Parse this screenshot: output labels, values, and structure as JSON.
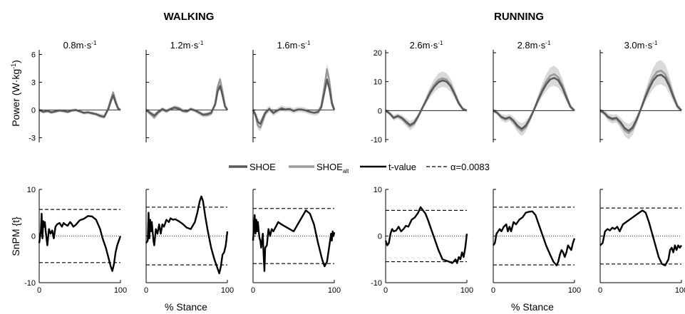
{
  "colors": {
    "shoe": "#5a5a5a",
    "shoe_alt": "#9a9a9a",
    "band": "#d9d9d9",
    "tvalue": "#000000",
    "threshold": "#000000",
    "axis": "#000000",
    "zero": "#000000"
  },
  "headers": {
    "walking": "WALKING",
    "running": "RUNNING"
  },
  "power_ylabel": "Power (W·kg",
  "power_ylabel_sup": "-1",
  "power_ylabel_end": ")",
  "spm_ylabel": "SnPM {t}",
  "xlabel": "% Stance",
  "legend": {
    "shoe": "SHOE",
    "shoe_alt_base": "SHOE",
    "shoe_alt_sub": "alt",
    "tvalue": "t-value",
    "alpha": "α=0.0083"
  },
  "chart_data": {
    "type": "line",
    "x_range": [
      0,
      100
    ],
    "x_ticks": [
      "0",
      "100"
    ],
    "power_panels": [
      {
        "title_base": "0.8m·s",
        "title_sup": "-1",
        "ylim": [
          -3.5,
          6.5
        ],
        "yticks": [
          6,
          3,
          0,
          -3
        ],
        "ytick_labels": [
          "6",
          "3",
          "0",
          "-3"
        ],
        "x": [
          0,
          5,
          10,
          15,
          20,
          25,
          30,
          35,
          40,
          45,
          50,
          55,
          60,
          65,
          70,
          75,
          80,
          85,
          88,
          91,
          94,
          97,
          100
        ],
        "shoe": [
          0,
          -0.2,
          -0.1,
          -0.25,
          -0.15,
          -0.05,
          -0.1,
          -0.2,
          -0.05,
          0,
          -0.15,
          -0.3,
          -0.25,
          -0.35,
          -0.45,
          -0.65,
          -0.75,
          0.1,
          0.9,
          1.6,
          0.8,
          0.15,
          0
        ],
        "shoe_alt": [
          0,
          -0.2,
          -0.1,
          -0.25,
          -0.15,
          -0.05,
          -0.1,
          -0.2,
          -0.05,
          0,
          -0.15,
          -0.3,
          -0.25,
          -0.35,
          -0.45,
          -0.6,
          -0.7,
          0.2,
          1.1,
          1.9,
          1.0,
          0.2,
          0
        ],
        "band": 0.45
      },
      {
        "title_base": "1.2m·s",
        "title_sup": "-1",
        "ylim": [
          -3.5,
          6.5
        ],
        "yticks": [
          6,
          3,
          0,
          -3
        ],
        "ytick_labels": [
          "",
          "",
          "",
          ""
        ],
        "x": [
          0,
          5,
          10,
          15,
          20,
          25,
          30,
          35,
          40,
          45,
          50,
          55,
          60,
          65,
          70,
          75,
          80,
          85,
          88,
          91,
          94,
          97,
          100
        ],
        "shoe": [
          0,
          -0.3,
          -0.6,
          -0.2,
          0.1,
          -0.1,
          0.1,
          0.25,
          0.15,
          -0.1,
          -0.15,
          0.1,
          -0.05,
          -0.25,
          -0.5,
          -0.45,
          -0.3,
          0.6,
          2.0,
          2.6,
          1.6,
          0.4,
          0
        ],
        "shoe_alt": [
          0,
          -0.4,
          -0.8,
          -0.3,
          0.05,
          -0.15,
          0.1,
          0.3,
          0.2,
          -0.05,
          -0.15,
          0.1,
          -0.05,
          -0.3,
          -0.55,
          -0.55,
          -0.4,
          0.7,
          2.5,
          3.3,
          2.0,
          0.5,
          0
        ],
        "band": 0.5
      },
      {
        "title_base": "1.6m·s",
        "title_sup": "-1",
        "ylim": [
          -3.5,
          6.5
        ],
        "yticks": [
          6,
          3,
          0,
          -3
        ],
        "ytick_labels": [
          "",
          "",
          "",
          ""
        ],
        "x": [
          0,
          3,
          6,
          9,
          12,
          15,
          20,
          25,
          30,
          35,
          40,
          45,
          50,
          55,
          60,
          65,
          70,
          75,
          80,
          84,
          88,
          91,
          94,
          97,
          100
        ],
        "shoe": [
          0,
          -0.5,
          -1.3,
          -1.5,
          -0.9,
          -0.3,
          0.1,
          -0.3,
          -0.05,
          0.15,
          0.05,
          0.1,
          -0.1,
          0.05,
          0.05,
          -0.05,
          -0.2,
          -0.3,
          -0.2,
          0.3,
          2.0,
          3.3,
          2.3,
          0.7,
          0
        ],
        "shoe_alt": [
          0,
          -0.6,
          -1.7,
          -1.9,
          -1.2,
          -0.4,
          0.15,
          -0.35,
          -0.05,
          0.2,
          0.05,
          0.1,
          -0.1,
          0.05,
          0.05,
          -0.05,
          -0.2,
          -0.3,
          -0.25,
          0.4,
          2.6,
          4.4,
          3.1,
          0.9,
          0
        ],
        "band": 0.7
      },
      {
        "title_base": "2.6m·s",
        "title_sup": "-1",
        "ylim": [
          -11,
          21
        ],
        "yticks": [
          20,
          10,
          0,
          -10
        ],
        "ytick_labels": [
          "20",
          "10",
          "0",
          "-10"
        ],
        "x": [
          0,
          5,
          10,
          15,
          20,
          25,
          30,
          35,
          40,
          45,
          50,
          55,
          60,
          65,
          70,
          75,
          80,
          85,
          90,
          95,
          100
        ],
        "shoe": [
          0,
          -1,
          -2.5,
          -1.8,
          -2.5,
          -3.8,
          -5.0,
          -4.2,
          -2.0,
          0.8,
          3.5,
          6.2,
          8.3,
          9.8,
          10.4,
          10.0,
          8.4,
          5.6,
          2.5,
          0.5,
          0
        ],
        "shoe_alt": [
          0,
          -1,
          -2.6,
          -2.0,
          -2.8,
          -4.2,
          -5.5,
          -4.6,
          -2.2,
          0.8,
          3.8,
          6.8,
          9.0,
          10.6,
          11.2,
          10.7,
          9.0,
          6.0,
          2.7,
          0.6,
          0
        ],
        "band": 1.3
      },
      {
        "title_base": "2.8m·s",
        "title_sup": "-1",
        "ylim": [
          -11,
          21
        ],
        "yticks": [
          20,
          10,
          0,
          -10
        ],
        "ytick_labels": [
          "",
          "",
          "",
          ""
        ],
        "x": [
          0,
          5,
          10,
          15,
          20,
          25,
          30,
          35,
          40,
          45,
          50,
          55,
          60,
          65,
          70,
          75,
          80,
          85,
          90,
          95,
          100
        ],
        "shoe": [
          0,
          -0.8,
          -2.2,
          -2.8,
          -2.3,
          -3.5,
          -5.3,
          -6.3,
          -5.2,
          -2.8,
          0.2,
          3.5,
          6.5,
          9.0,
          10.8,
          11.3,
          10.5,
          8.0,
          4.5,
          1.3,
          0
        ],
        "shoe_alt": [
          0,
          -0.8,
          -2.4,
          -3.1,
          -2.6,
          -3.9,
          -5.9,
          -7.0,
          -5.8,
          -3.1,
          0.2,
          3.9,
          7.2,
          10.0,
          12.0,
          12.6,
          11.5,
          8.8,
          5.0,
          1.4,
          0
        ],
        "band": 1.5
      },
      {
        "title_base": "3.0m·s",
        "title_sup": "-1",
        "ylim": [
          -11,
          21
        ],
        "yticks": [
          20,
          10,
          0,
          -10
        ],
        "ytick_labels": [
          "",
          "",
          "",
          ""
        ],
        "x": [
          0,
          5,
          10,
          15,
          20,
          25,
          30,
          35,
          40,
          45,
          50,
          55,
          60,
          65,
          70,
          75,
          80,
          85,
          90,
          95,
          100
        ],
        "shoe": [
          0,
          -0.8,
          -2.2,
          -2.8,
          -2.5,
          -4.0,
          -6.0,
          -7.0,
          -5.8,
          -3.0,
          0.5,
          4.2,
          7.5,
          10.3,
          12.0,
          12.4,
          11.3,
          8.5,
          4.8,
          1.5,
          0
        ],
        "shoe_alt": [
          0,
          -0.9,
          -2.5,
          -3.2,
          -2.9,
          -4.6,
          -6.8,
          -7.8,
          -6.5,
          -3.4,
          0.5,
          4.7,
          8.4,
          11.5,
          13.4,
          13.8,
          12.6,
          9.5,
          5.3,
          1.6,
          0
        ],
        "band": 1.7
      }
    ],
    "spm_panels": [
      {
        "ylim": [
          -10,
          10
        ],
        "yticks": [
          10,
          0,
          -10
        ],
        "ytick_labels": [
          "10",
          "0",
          "-10"
        ],
        "threshold": 5.7,
        "x": [
          0,
          2,
          3,
          4,
          5,
          6,
          7,
          8,
          9,
          10,
          12,
          14,
          16,
          18,
          20,
          22,
          25,
          28,
          30,
          32,
          35,
          38,
          40,
          42,
          45,
          48,
          50,
          55,
          60,
          65,
          70,
          75,
          78,
          82,
          85,
          88,
          90,
          92,
          94,
          96,
          98,
          100
        ],
        "t": [
          -1.5,
          1.0,
          4.8,
          -0.5,
          3.2,
          2.0,
          3.0,
          1.0,
          -0.5,
          -2.0,
          1.5,
          0.5,
          1.2,
          -0.5,
          2.0,
          2.5,
          2.8,
          2.0,
          2.8,
          2.5,
          2.2,
          3.0,
          2.6,
          2.0,
          2.4,
          3.0,
          3.4,
          3.7,
          4.3,
          4.2,
          3.5,
          1.5,
          -0.5,
          -2.5,
          -4.5,
          -6.5,
          -7.5,
          -6.0,
          -3.5,
          -2.0,
          -1.0,
          0.0
        ]
      },
      {
        "ylim": [
          -10,
          10
        ],
        "yticks": [
          10,
          0,
          -10
        ],
        "ytick_labels": [
          "",
          "",
          ""
        ],
        "threshold": 6.2,
        "x": [
          0,
          2,
          3,
          4,
          5,
          6,
          7,
          8,
          9,
          10,
          12,
          14,
          16,
          18,
          20,
          22,
          25,
          28,
          30,
          33,
          36,
          40,
          45,
          50,
          55,
          60,
          63,
          66,
          68,
          70,
          73,
          76,
          80,
          84,
          88,
          90,
          92,
          94,
          96,
          98,
          100
        ],
        "t": [
          -1.5,
          -1.0,
          5.0,
          -0.5,
          3.5,
          1.0,
          3.0,
          1.0,
          -1.0,
          -2.0,
          1.5,
          0.5,
          2.5,
          0.5,
          2.5,
          2.0,
          3.5,
          3.0,
          3.8,
          3.5,
          3.6,
          3.2,
          2.6,
          1.8,
          1.5,
          3.0,
          5.0,
          7.5,
          8.5,
          7.5,
          4.0,
          1.0,
          -2.5,
          -5.0,
          -7.0,
          -8.0,
          -6.5,
          -4.0,
          -3.5,
          -2.0,
          1.0
        ]
      },
      {
        "ylim": [
          -10,
          10
        ],
        "yticks": [
          10,
          0,
          -10
        ],
        "ytick_labels": [
          "",
          "",
          ""
        ],
        "threshold": 5.9,
        "x": [
          0,
          2,
          3,
          4,
          5,
          6,
          7,
          8,
          9,
          10,
          11,
          12,
          13,
          14,
          15,
          17,
          19,
          21,
          23,
          25,
          28,
          31,
          35,
          40,
          45,
          50,
          55,
          60,
          65,
          70,
          75,
          80,
          85,
          88,
          91,
          94,
          96,
          97,
          98,
          99,
          100
        ],
        "t": [
          -1.0,
          4.5,
          0.5,
          3.5,
          1.0,
          3.0,
          1.0,
          -0.5,
          -1.0,
          -2.5,
          -1.0,
          0.5,
          -4.0,
          -7.5,
          -2.5,
          -2.0,
          1.5,
          0.0,
          1.5,
          1.0,
          2.0,
          3.0,
          2.5,
          2.0,
          1.5,
          1.0,
          2.5,
          4.0,
          5.5,
          4.8,
          2.5,
          -1.5,
          -5.0,
          -6.5,
          -5.5,
          -2.0,
          0.5,
          -1.0,
          1.0,
          0.0,
          0.8
        ]
      },
      {
        "ylim": [
          -10,
          10
        ],
        "yticks": [
          10,
          0,
          -10
        ],
        "ytick_labels": [
          "10",
          "0",
          "-10"
        ],
        "threshold": 5.5,
        "x": [
          0,
          2,
          4,
          6,
          8,
          10,
          13,
          16,
          19,
          22,
          25,
          28,
          32,
          36,
          40,
          43,
          46,
          49,
          52,
          56,
          60,
          65,
          70,
          75,
          78,
          82,
          86,
          88,
          90,
          92,
          94,
          96,
          98,
          100
        ],
        "t": [
          -1.0,
          -2.0,
          -1.5,
          0.5,
          1.5,
          1.0,
          1.2,
          2.0,
          1.0,
          1.5,
          2.2,
          2.0,
          3.5,
          4.0,
          5.0,
          6.2,
          5.5,
          4.8,
          3.5,
          1.5,
          -0.5,
          -3.0,
          -5.0,
          -5.3,
          -5.5,
          -5.8,
          -5.0,
          -5.8,
          -4.5,
          -5.0,
          -3.5,
          -4.5,
          -2.5,
          0.5
        ]
      },
      {
        "ylim": [
          -10,
          10
        ],
        "yticks": [
          10,
          0,
          -10
        ],
        "ytick_labels": [
          "",
          "",
          ""
        ],
        "threshold": 6.2,
        "x": [
          0,
          2,
          4,
          6,
          8,
          10,
          13,
          16,
          18,
          20,
          22,
          25,
          28,
          32,
          36,
          40,
          44,
          48,
          52,
          56,
          60,
          65,
          70,
          74,
          78,
          80,
          82,
          84,
          86,
          88,
          90,
          92,
          94,
          96,
          98,
          100
        ],
        "t": [
          -2.0,
          -1.5,
          0.5,
          1.0,
          1.5,
          1.0,
          2.0,
          2.5,
          1.0,
          2.0,
          1.0,
          3.0,
          2.5,
          3.5,
          4.0,
          5.0,
          5.2,
          5.3,
          4.5,
          2.5,
          0.5,
          -2.0,
          -4.0,
          -5.5,
          -6.3,
          -5.5,
          -4.0,
          -3.0,
          -3.5,
          -4.5,
          -3.5,
          -2.0,
          -2.5,
          -3.0,
          -1.5,
          -0.5
        ]
      },
      {
        "ylim": [
          -10,
          10
        ],
        "yticks": [
          10,
          0,
          -10
        ],
        "ytick_labels": [
          "",
          "",
          ""
        ],
        "threshold": 6.0,
        "x": [
          0,
          3,
          6,
          9,
          12,
          15,
          18,
          21,
          24,
          28,
          32,
          36,
          40,
          44,
          48,
          52,
          56,
          60,
          64,
          68,
          72,
          76,
          80,
          84,
          86,
          88,
          90,
          92,
          94,
          96,
          98,
          100
        ],
        "t": [
          -2.0,
          -1.5,
          1.0,
          1.5,
          1.2,
          1.8,
          1.5,
          2.0,
          1.0,
          2.5,
          3.0,
          3.5,
          4.0,
          4.5,
          5.0,
          5.5,
          5.0,
          3.0,
          0.5,
          -2.0,
          -4.5,
          -6.0,
          -6.3,
          -5.0,
          -3.0,
          -2.5,
          -3.5,
          -2.0,
          -3.0,
          -2.0,
          -2.5,
          -2.0
        ]
      }
    ]
  }
}
